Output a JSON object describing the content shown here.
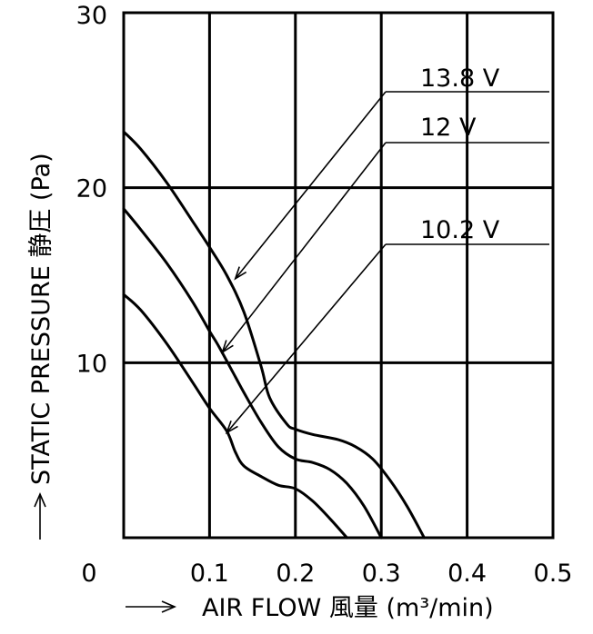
{
  "chart_data": {
    "type": "line",
    "xlabel": "AIR FLOW 風量 (m³/min)",
    "ylabel": "STATIC PRESSURE 静圧 (Pa)",
    "xlim": [
      0,
      0.5
    ],
    "ylim": [
      0,
      30
    ],
    "x_ticks": [
      "0",
      "0.1",
      "0.2",
      "0.3",
      "0.4",
      "0.5"
    ],
    "y_ticks": [
      "10",
      "20",
      "30"
    ],
    "grid": true,
    "series": [
      {
        "name": "13.8 V",
        "x": [
          0,
          0.02,
          0.05,
          0.08,
          0.1,
          0.12,
          0.14,
          0.16,
          0.17,
          0.19,
          0.2,
          0.22,
          0.25,
          0.27,
          0.29,
          0.31,
          0.33,
          0.35
        ],
        "y": [
          23.2,
          22.2,
          20.3,
          18.1,
          16.6,
          15,
          12.9,
          9.8,
          8.0,
          6.5,
          6.2,
          5.9,
          5.6,
          5.2,
          4.5,
          3.3,
          1.8,
          0
        ]
      },
      {
        "name": "12 V",
        "x": [
          0,
          0.02,
          0.05,
          0.08,
          0.1,
          0.11,
          0.13,
          0.14,
          0.16,
          0.18,
          0.2,
          0.22,
          0.24,
          0.26,
          0.28,
          0.3
        ],
        "y": [
          18.8,
          17.6,
          15.7,
          13.5,
          11.8,
          11.0,
          9.2,
          8.3,
          6.6,
          5.2,
          4.5,
          4.3,
          3.9,
          3.1,
          1.8,
          0
        ]
      },
      {
        "name": "10.2 V",
        "x": [
          0,
          0.02,
          0.05,
          0.08,
          0.1,
          0.12,
          0.13,
          0.14,
          0.16,
          0.18,
          0.2,
          0.22,
          0.24,
          0.26
        ],
        "y": [
          13.9,
          13.0,
          11.1,
          8.9,
          7.4,
          6.1,
          4.9,
          4.1,
          3.5,
          3.0,
          2.8,
          2.1,
          1.1,
          0
        ]
      }
    ],
    "annotations": [
      {
        "text": "13.8 V",
        "series": 0,
        "x": 0.13,
        "y": 14.8
      },
      {
        "text": "12 V",
        "series": 1,
        "x": 0.115,
        "y": 10.6
      },
      {
        "text": "10.2 V",
        "series": 2,
        "x": 0.12,
        "y": 6.0
      }
    ]
  }
}
